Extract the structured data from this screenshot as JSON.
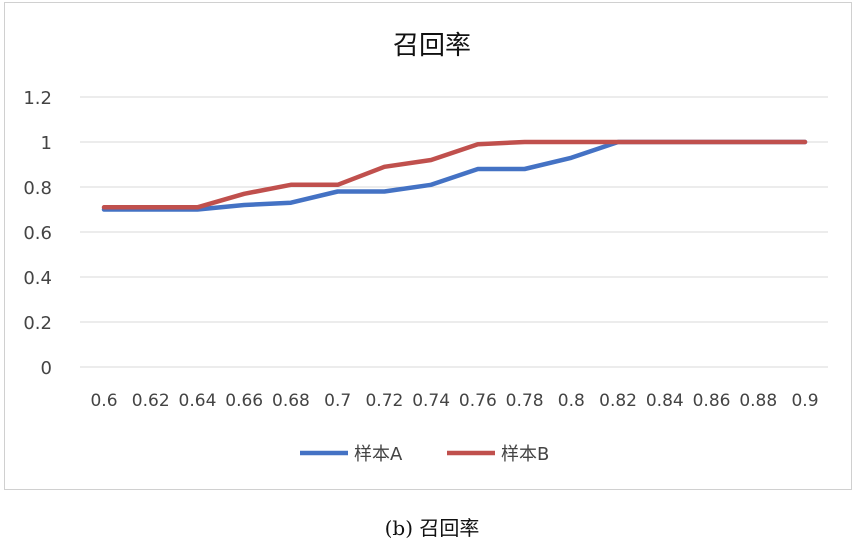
{
  "caption": "(b)  召回率",
  "chart_data": {
    "type": "line",
    "title": "召回率",
    "xlabel": "",
    "ylabel": "",
    "ylim": [
      0,
      1.2
    ],
    "yticks": [
      "0",
      "0.2",
      "0.4",
      "0.6",
      "0.8",
      "1",
      "1.2"
    ],
    "categories": [
      "0.6",
      "0.62",
      "0.64",
      "0.66",
      "0.68",
      "0.7",
      "0.72",
      "0.74",
      "0.76",
      "0.78",
      "0.8",
      "0.82",
      "0.84",
      "0.86",
      "0.88",
      "0.9"
    ],
    "grid": true,
    "legend_position": "bottom",
    "series": [
      {
        "name": "样本A",
        "color": "#4472c4",
        "values": [
          0.7,
          0.7,
          0.7,
          0.72,
          0.73,
          0.78,
          0.78,
          0.81,
          0.88,
          0.88,
          0.93,
          1.0,
          1.0,
          1.0,
          1.0,
          1.0
        ]
      },
      {
        "name": "样本B",
        "color": "#c0504d",
        "values": [
          0.71,
          0.71,
          0.71,
          0.77,
          0.81,
          0.81,
          0.89,
          0.92,
          0.99,
          1.0,
          1.0,
          1.0,
          1.0,
          1.0,
          1.0,
          1.0
        ]
      }
    ]
  }
}
